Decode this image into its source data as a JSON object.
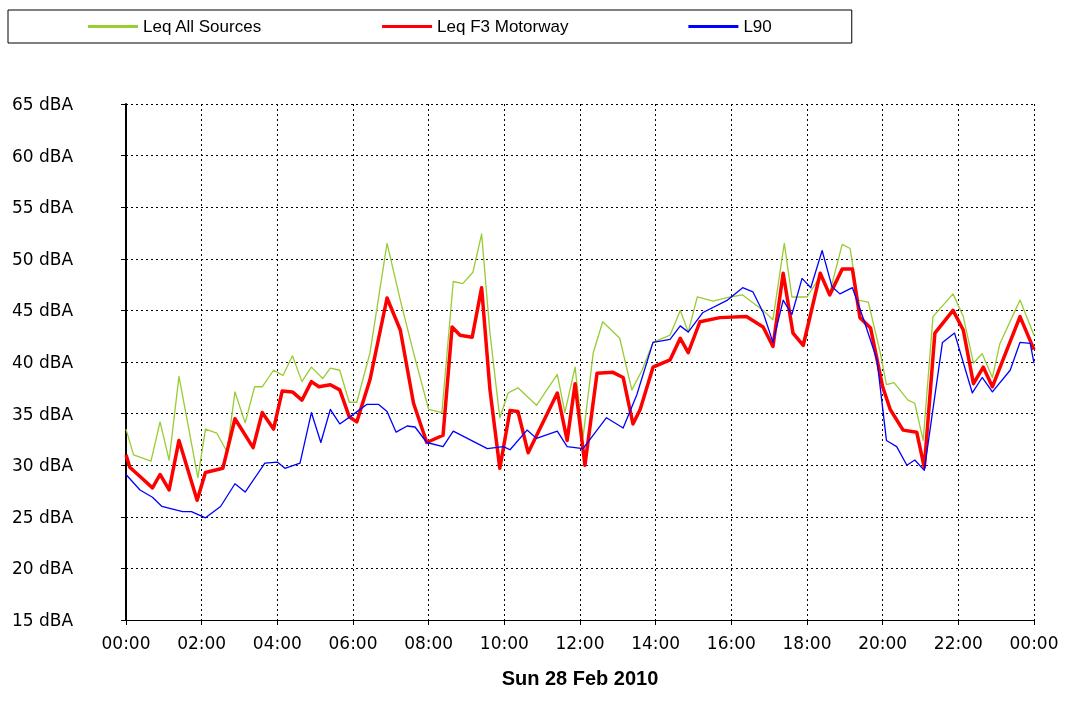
{
  "chart_data": {
    "type": "line",
    "xlabel": "Sun 28 Feb 2010",
    "xlim": [
      0,
      24
    ],
    "xticks": [
      {
        "value": 0,
        "label": "00:00"
      },
      {
        "value": 2,
        "label": "02:00"
      },
      {
        "value": 4,
        "label": "04:00"
      },
      {
        "value": 6,
        "label": "06:00"
      },
      {
        "value": 8,
        "label": "08:00"
      },
      {
        "value": 10,
        "label": "10:00"
      },
      {
        "value": 12,
        "label": "12:00"
      },
      {
        "value": 14,
        "label": "14:00"
      },
      {
        "value": 16,
        "label": "16:00"
      },
      {
        "value": 18,
        "label": "18:00"
      },
      {
        "value": 20,
        "label": "20:00"
      },
      {
        "value": 22,
        "label": "22:00"
      },
      {
        "value": 24,
        "label": "00:00"
      }
    ],
    "ylim": [
      15,
      65
    ],
    "yticks": [
      {
        "value": 15,
        "label": "15 dBA"
      },
      {
        "value": 20,
        "label": "20 dBA"
      },
      {
        "value": 25,
        "label": "25 dBA"
      },
      {
        "value": 30,
        "label": "30 dBA"
      },
      {
        "value": 35,
        "label": "35 dBA"
      },
      {
        "value": 40,
        "label": "40 dBA"
      },
      {
        "value": 45,
        "label": "45 dBA"
      },
      {
        "value": 50,
        "label": "50 dBA"
      },
      {
        "value": 55,
        "label": "55 dBA"
      },
      {
        "value": 60,
        "label": "60 dBA"
      },
      {
        "value": 65,
        "label": "65 dBA"
      }
    ],
    "grid": true,
    "legend": "top",
    "marker": "none",
    "line_style": "solid",
    "series": [
      {
        "name": "Leq All Sources",
        "color": "#99cc33",
        "x": [
          0,
          0.2,
          0.66,
          0.9,
          1.14,
          1.4,
          1.9,
          2.1,
          2.4,
          2.67,
          2.88,
          3.15,
          3.4,
          3.6,
          3.9,
          4.15,
          4.4,
          4.65,
          4.9,
          5.2,
          5.4,
          5.65,
          5.9,
          6.1,
          6.45,
          6.9,
          7.25,
          7.6,
          8.0,
          8.35,
          8.65,
          8.9,
          9.17,
          9.4,
          9.62,
          9.88,
          10.1,
          10.36,
          10.85,
          11.4,
          11.6,
          11.87,
          12.08,
          12.35,
          12.6,
          13.05,
          13.37,
          13.64,
          13.93,
          14.38,
          14.65,
          14.86,
          15.1,
          15.52,
          15.97,
          16.3,
          16.84,
          17.1,
          17.4,
          17.6,
          18.0,
          18.35,
          18.6,
          18.93,
          19.14,
          19.35,
          19.62,
          19.93,
          20.1,
          20.3,
          20.67,
          20.85,
          21.07,
          21.33,
          21.86,
          22.13,
          22.4,
          22.63,
          22.9,
          23.1,
          23.63,
          24
        ],
        "values": [
          33.5,
          31,
          30.4,
          34.2,
          30.5,
          38.6,
          28.8,
          33.5,
          33.1,
          31.3,
          37.1,
          34.1,
          37.6,
          37.6,
          39.2,
          38.7,
          40.6,
          38.1,
          39.5,
          38.4,
          39.4,
          39.2,
          36.1,
          36.1,
          40.9,
          51.5,
          46.0,
          40.9,
          35.4,
          35.1,
          47.8,
          47.6,
          48.7,
          52.4,
          42.8,
          34.6,
          37.0,
          37.5,
          35.8,
          38.8,
          35.1,
          39.5,
          32.7,
          40.9,
          43.9,
          42.3,
          37.3,
          39.2,
          41.9,
          42.6,
          45.0,
          42.9,
          46.3,
          45.9,
          46.3,
          46.5,
          45.0,
          44.1,
          51.5,
          46.3,
          46.3,
          48.3,
          46.7,
          51.4,
          51.0,
          46.0,
          45.8,
          41.0,
          37.8,
          38.0,
          36.3,
          36.0,
          32.4,
          44.4,
          46.6,
          44.4,
          39.9,
          40.8,
          38.5,
          41.8,
          46.0,
          42.6
        ]
      },
      {
        "name": "Leq F3 Motorway",
        "color": "#ff0000",
        "x": [
          0,
          0.1,
          0.37,
          0.7,
          0.9,
          1.14,
          1.4,
          1.88,
          2.1,
          2.56,
          2.88,
          3.36,
          3.6,
          3.9,
          4.13,
          4.4,
          4.65,
          4.9,
          5.1,
          5.4,
          5.65,
          5.9,
          6.1,
          6.45,
          6.9,
          7.25,
          7.6,
          7.95,
          8.38,
          8.62,
          8.83,
          9.15,
          9.4,
          9.62,
          9.88,
          10.15,
          10.36,
          10.63,
          11.4,
          11.66,
          11.87,
          12.13,
          12.45,
          12.87,
          13.14,
          13.4,
          13.59,
          13.93,
          14.38,
          14.65,
          14.86,
          15.17,
          15.7,
          16.4,
          16.84,
          17.1,
          17.37,
          17.63,
          17.9,
          18.35,
          18.6,
          18.93,
          19.2,
          19.4,
          19.68,
          20.0,
          20.2,
          20.54,
          20.9,
          21.1,
          21.38,
          21.86,
          22.13,
          22.4,
          22.66,
          22.9,
          23.2,
          23.63,
          24
        ],
        "values": [
          31.0,
          29.8,
          28.9,
          27.8,
          29.1,
          27.6,
          32.4,
          26.6,
          29.3,
          29.7,
          34.5,
          31.7,
          35.1,
          33.5,
          37.2,
          37.1,
          36.3,
          38.1,
          37.6,
          37.8,
          37.3,
          34.7,
          34.2,
          38.3,
          46.2,
          43.1,
          36.0,
          32.2,
          32.9,
          43.4,
          42.6,
          42.4,
          47.2,
          37.3,
          29.7,
          35.3,
          35.2,
          31.2,
          37.0,
          32.4,
          37.9,
          30.0,
          38.9,
          39.0,
          38.5,
          34.0,
          35.4,
          39.5,
          40.2,
          42.3,
          40.9,
          43.9,
          44.3,
          44.4,
          43.4,
          41.5,
          48.6,
          42.8,
          41.6,
          48.6,
          46.5,
          49.0,
          49.0,
          44.3,
          43.3,
          37.6,
          35.4,
          33.4,
          33.2,
          29.8,
          42.8,
          45.0,
          43.1,
          37.9,
          39.5,
          37.6,
          40.4,
          44.4,
          41.2
        ]
      },
      {
        "name": "L90",
        "color": "#0000ff",
        "x": [
          0,
          0.37,
          0.7,
          0.95,
          1.5,
          1.73,
          2.1,
          2.5,
          2.88,
          3.15,
          3.67,
          4.0,
          4.2,
          4.6,
          4.9,
          5.15,
          5.4,
          5.65,
          6.0,
          6.37,
          6.67,
          6.9,
          7.14,
          7.43,
          7.64,
          7.95,
          8.38,
          8.65,
          9.55,
          9.97,
          10.15,
          10.6,
          10.85,
          11.4,
          11.66,
          12.08,
          12.7,
          13.14,
          13.5,
          13.93,
          14.38,
          14.65,
          14.86,
          15.25,
          15.9,
          16.3,
          16.57,
          16.84,
          17.1,
          17.37,
          17.6,
          17.87,
          18.1,
          18.4,
          18.66,
          18.87,
          19.2,
          19.5,
          19.85,
          20.1,
          20.37,
          20.64,
          20.85,
          21.1,
          21.58,
          21.9,
          22.37,
          22.63,
          22.9,
          23.37,
          23.63,
          23.9,
          24
        ],
        "values": [
          29.1,
          27.6,
          26.9,
          26.0,
          25.5,
          25.5,
          24.9,
          26.0,
          28.2,
          27.4,
          30.2,
          30.3,
          29.7,
          30.2,
          35.1,
          32.2,
          35.4,
          34.0,
          34.9,
          35.9,
          35.9,
          35.2,
          33.2,
          33.8,
          33.7,
          32.2,
          31.8,
          33.3,
          31.6,
          31.8,
          31.5,
          33.4,
          32.6,
          33.3,
          31.8,
          31.6,
          34.6,
          33.6,
          36.8,
          41.9,
          42.2,
          43.5,
          42.9,
          44.8,
          46.0,
          47.2,
          46.8,
          44.8,
          41.9,
          46.0,
          44.6,
          48.1,
          47.2,
          50.8,
          47.3,
          46.6,
          47.2,
          44.1,
          40.2,
          32.4,
          31.8,
          30.0,
          30.5,
          29.5,
          41.9,
          42.8,
          37.0,
          38.5,
          37.1,
          39.2,
          41.9,
          41.8,
          39.9
        ]
      }
    ]
  }
}
